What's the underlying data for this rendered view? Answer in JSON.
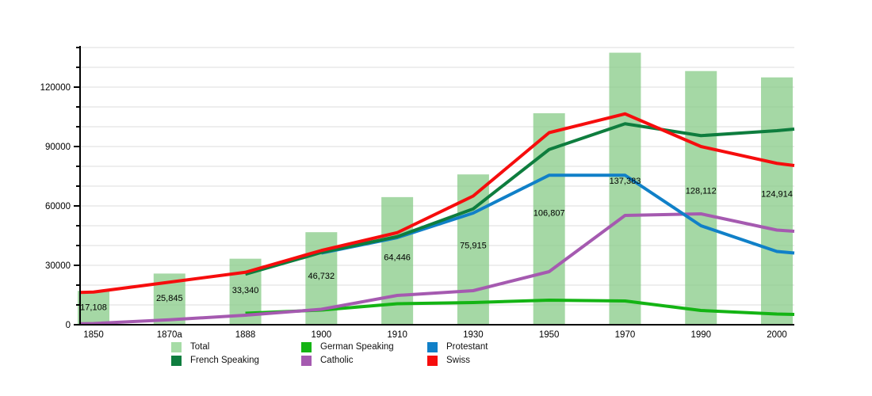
{
  "chart_data": {
    "type": "bar+line",
    "title": "",
    "categories": [
      "1850",
      "1870a",
      "1888",
      "1900",
      "1910",
      "1930",
      "1950",
      "1970",
      "1990",
      "2000"
    ],
    "y_axis": {
      "major_ticks": [
        0,
        30000,
        60000,
        90000,
        120000
      ],
      "major_tick_labels": [
        "0",
        "30000",
        "60000",
        "90000",
        "120000"
      ],
      "minor_step": 10000,
      "max": 140000,
      "grid": "horizontal-only"
    },
    "bar_series": {
      "name": "Total",
      "color": "#a6dca6",
      "values": [
        17108,
        25845,
        33340,
        46732,
        64446,
        75915,
        106807,
        137383,
        128112,
        124914
      ],
      "labels": [
        "17,108",
        "25,845",
        "33,340",
        "46,732",
        "64,446",
        "75,915",
        "106,807",
        "137,383",
        "128,112",
        "124,914"
      ]
    },
    "line_series": [
      {
        "name": "German Speaking",
        "color": "#14b414",
        "values": [
          null,
          null,
          5800,
          7400,
          10600,
          11200,
          12400,
          12000,
          7200,
          5400
        ],
        "end": 5200
      },
      {
        "name": "Catholic",
        "color": "#a55ab0",
        "start": 500,
        "values": [
          600,
          2500,
          4800,
          7800,
          14800,
          17200,
          26800,
          55200,
          56000,
          47800
        ],
        "end": 47200
      },
      {
        "name": "Protestant",
        "color": "#1080c8",
        "values": [
          null,
          null,
          null,
          36200,
          44000,
          56400,
          75500,
          75500,
          50000,
          37000
        ],
        "end": 36200
      },
      {
        "name": "French Speaking",
        "color": "#0e7d3e",
        "values": [
          null,
          null,
          25500,
          36500,
          44500,
          58500,
          88500,
          101500,
          95500,
          98000
        ],
        "end": 98800
      },
      {
        "name": "Swiss",
        "color": "#f60d0d",
        "start": 16300,
        "values": [
          16500,
          21500,
          26500,
          37500,
          46500,
          65000,
          97000,
          106500,
          90000,
          81500
        ],
        "end": 80400
      }
    ],
    "legend": {
      "position": "bottom",
      "items": [
        {
          "label": "Total",
          "color": "#a6dca6",
          "col": 0,
          "row": 0
        },
        {
          "label": "German Speaking",
          "color": "#14b414",
          "col": 1,
          "row": 0
        },
        {
          "label": "Protestant",
          "color": "#1080c8",
          "col": 2,
          "row": 0
        },
        {
          "label": "French Speaking",
          "color": "#0e7d3e",
          "col": 0,
          "row": 1
        },
        {
          "label": "Catholic",
          "color": "#a55ab0",
          "col": 1,
          "row": 1
        },
        {
          "label": "Swiss",
          "color": "#f60d0d",
          "col": 2,
          "row": 1
        }
      ]
    }
  }
}
